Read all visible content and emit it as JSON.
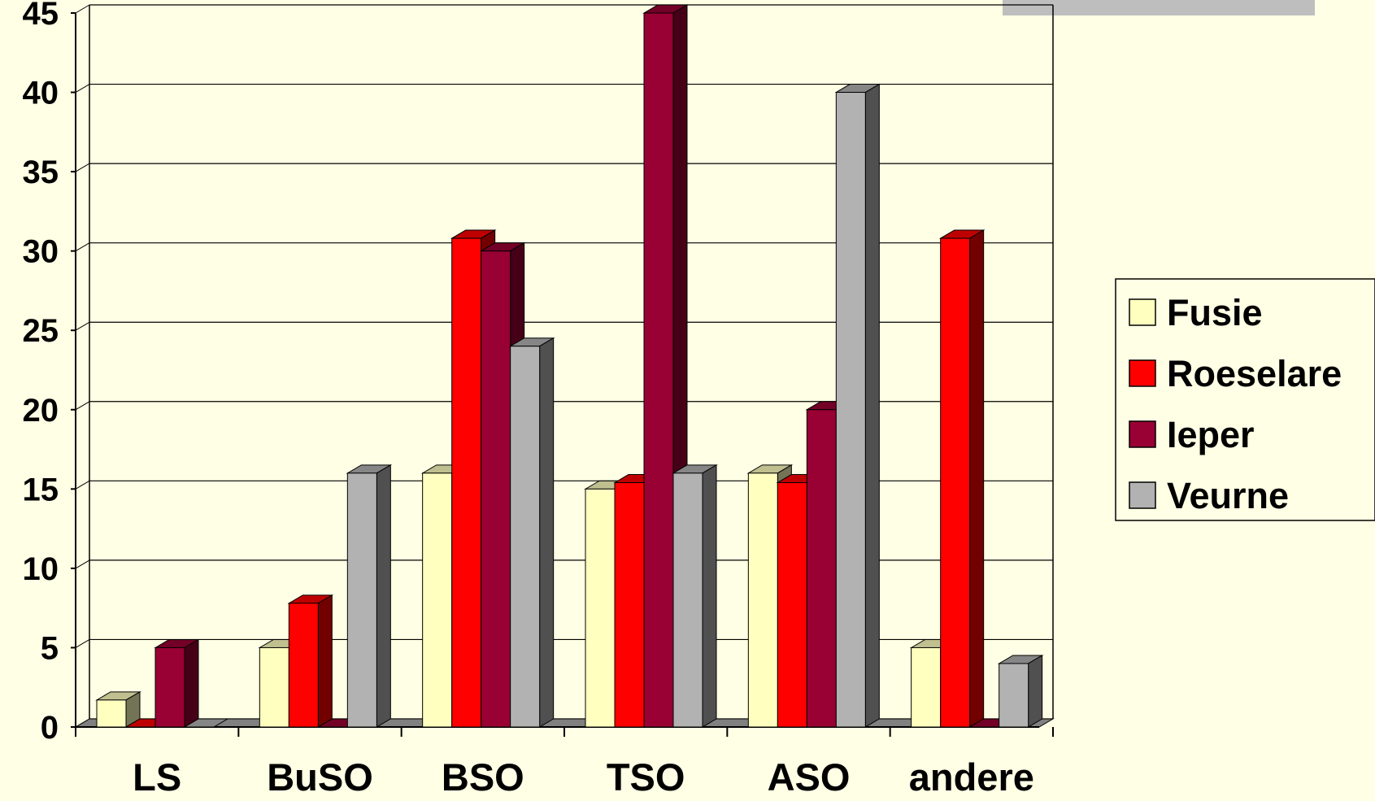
{
  "chart_data": {
    "type": "bar",
    "title": "",
    "xlabel": "",
    "ylabel": "",
    "ylim": [
      0,
      45
    ],
    "ytick_step": 5,
    "grid": true,
    "legend_position": "right",
    "categories": [
      "LS",
      "BuSO",
      "BSO",
      "TSO",
      "ASO",
      "andere"
    ],
    "series": [
      {
        "name": "Fusie",
        "color": "#FFFFC0",
        "values": [
          1.7,
          5,
          16,
          15,
          16,
          5
        ]
      },
      {
        "name": "Roeselare",
        "color": "#FF0000",
        "values": [
          0,
          7.8,
          30.8,
          15.4,
          15.4,
          30.8
        ]
      },
      {
        "name": "Ieper",
        "color": "#990033",
        "values": [
          5,
          0,
          30,
          45,
          20,
          0
        ]
      },
      {
        "name": "Veurne",
        "color": "#B2B2B2",
        "values": [
          0,
          16,
          24,
          16,
          40,
          4
        ]
      }
    ],
    "colors": {
      "background": "#FFFFE5",
      "floor": "#808080",
      "grid": "#000000",
      "top_right_bar": "#BEBEBE"
    }
  }
}
